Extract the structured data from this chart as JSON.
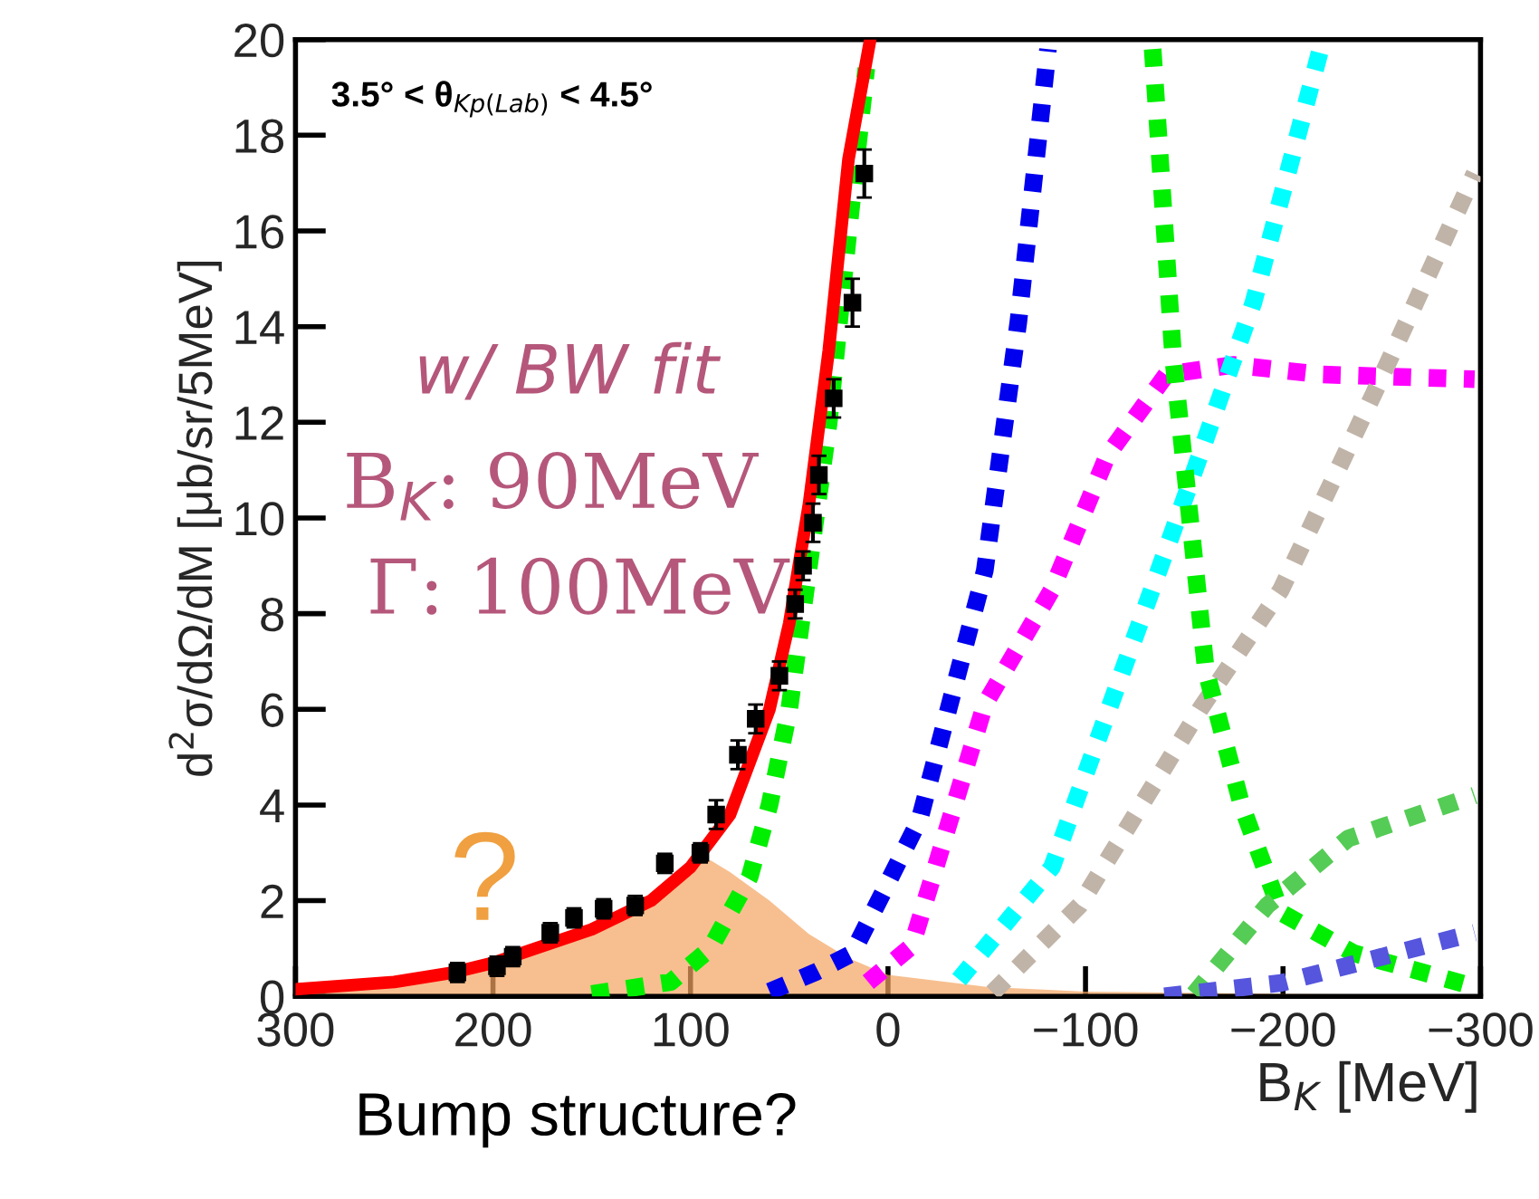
{
  "chart_data": {
    "type": "line",
    "xlabel": "B$_{K}$ [MeV]",
    "ylabel": "d$^{2}$σ/dΩ/dM [μb/sr/5MeV]",
    "xlim": [
      300,
      -300
    ],
    "ylim": [
      0,
      20
    ],
    "xticks": [
      300,
      200,
      100,
      0,
      {
        "value": -100,
        "label": "−100"
      },
      {
        "value": -200,
        "label": "−200"
      },
      {
        "value": -300,
        "label": "−300"
      }
    ],
    "yticks": [
      0,
      2,
      4,
      6,
      8,
      10,
      12,
      14,
      16,
      18,
      20
    ],
    "grid": false,
    "legend": false,
    "annotations": [
      "3.5° < θ$_{Kp(Lab)}$ < 4.5°",
      "w/ BW fit",
      "B$_{K}$: 90MeV",
      "Γ: 100MeV",
      "?",
      "Bump structure?"
    ],
    "series": [
      {
        "type": "area",
        "color": "#f4a460",
        "x": [
          300,
          250,
          200,
          150,
          120,
          100,
          90,
          80,
          60,
          40,
          20,
          0,
          -50,
          -100,
          -200,
          -300
        ],
        "values": [
          0.2,
          0.35,
          0.7,
          1.4,
          2.0,
          2.7,
          2.85,
          2.6,
          2.0,
          1.3,
          0.8,
          0.45,
          0.2,
          0.1,
          0.05,
          0.03
        ]
      },
      {
        "color": "#00ee00",
        "line_style": "dotted",
        "x": [
          150,
          110,
          90,
          70,
          60,
          50,
          40,
          30,
          20,
          11
        ],
        "values": [
          0.05,
          0.3,
          1.0,
          2.5,
          4.0,
          6.0,
          9.0,
          12.0,
          16.0,
          19.4
        ]
      },
      {
        "color": "#0000ee",
        "line_style": "dotted",
        "x": [
          60,
          37,
          18,
          -16,
          -49,
          -66,
          -81
        ],
        "values": [
          0.1,
          0.5,
          0.9,
          3.7,
          8.9,
          14.1,
          19.8
        ]
      },
      {
        "color": "#ff00ff",
        "line_style": "dotted",
        "x": [
          10,
          -12,
          -49,
          -83,
          -111,
          -141,
          -175,
          -219,
          -297
        ],
        "values": [
          0.3,
          1.05,
          6.1,
          8.5,
          11.3,
          13.0,
          13.2,
          13.0,
          12.9
        ]
      },
      {
        "color": "#00ffff",
        "line_style": "dotted",
        "x": [
          -36,
          -83,
          -124,
          -151,
          -185,
          -219
        ],
        "values": [
          0.35,
          2.7,
          7.4,
          10.5,
          14.5,
          19.8
        ]
      },
      {
        "color": "#c0b4a8",
        "line_style": "dotted",
        "x": [
          -53,
          -97,
          -158,
          -199,
          -246,
          -297
        ],
        "values": [
          0.08,
          1.9,
          6.0,
          8.5,
          12.6,
          17.2
        ]
      },
      {
        "color": "#00ee00",
        "line_style": "dotted",
        "x": [
          -134,
          -144.5,
          -161,
          -179,
          -199,
          -236,
          -297
        ],
        "values": [
          19.8,
          13.3,
          6.8,
          4.0,
          1.75,
          0.9,
          0.2
        ]
      },
      {
        "color": "#55cc55",
        "line_style": "dotted",
        "x": [
          -155,
          -192,
          -233,
          -297
        ],
        "values": [
          0.05,
          1.9,
          3.3,
          4.2
        ]
      },
      {
        "color": "#5555dd",
        "line_style": "dotted",
        "x": [
          -140,
          -199,
          -297
        ],
        "values": [
          0.0,
          0.28,
          1.33
        ]
      },
      {
        "color": "#ff0000",
        "line_style": "solid",
        "x": [
          300,
          250,
          220,
          200,
          150,
          120,
          100,
          80,
          60,
          50,
          40,
          30,
          20,
          9
        ],
        "values": [
          0.15,
          0.3,
          0.5,
          0.7,
          1.4,
          2.0,
          2.7,
          3.8,
          6.0,
          7.8,
          10.3,
          13.5,
          17.5,
          20.0
        ]
      },
      {
        "type": "scatter",
        "color": "#000000",
        "marker": "square",
        "x": [
          218,
          198,
          190,
          171,
          159,
          144,
          128,
          113,
          95,
          87,
          76,
          67,
          55,
          47,
          43,
          38,
          35,
          27.5,
          18,
          12
        ],
        "values": [
          0.5,
          0.63,
          0.83,
          1.33,
          1.64,
          1.83,
          1.9,
          2.78,
          3.0,
          3.8,
          5.05,
          5.8,
          6.7,
          8.2,
          9.0,
          9.9,
          10.9,
          12.5,
          14.5,
          17.2
        ],
        "errors": [
          0.2,
          0.2,
          0.2,
          0.2,
          0.2,
          0.2,
          0.2,
          0.2,
          0.2,
          0.3,
          0.3,
          0.3,
          0.3,
          0.3,
          0.3,
          0.4,
          0.4,
          0.4,
          0.5,
          0.5
        ]
      }
    ]
  }
}
